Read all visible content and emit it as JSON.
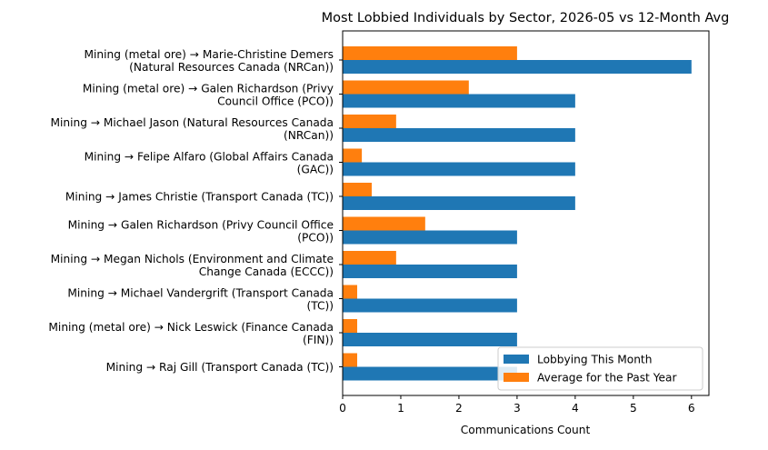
{
  "chart_data": {
    "type": "bar",
    "orientation": "horizontal",
    "title": "Most Lobbied Individuals by Sector, 2026-05 vs 12-Month Avg",
    "xlabel": "Communications Count",
    "ylabel": "",
    "xlim": [
      0,
      6.3
    ],
    "xticks": [
      0,
      1,
      2,
      3,
      4,
      5,
      6
    ],
    "grid": false,
    "legend_position": "lower-right",
    "categories": [
      [
        "Mining (metal ore) → Marie-Christine Demers",
        "(Natural Resources Canada (NRCan))"
      ],
      [
        "Mining (metal ore) → Galen Richardson (Privy",
        "Council Office (PCO))"
      ],
      [
        "Mining → Michael Jason (Natural Resources Canada",
        "(NRCan))"
      ],
      [
        "Mining → Felipe Alfaro (Global Affairs Canada",
        "(GAC))"
      ],
      [
        "Mining → James Christie (Transport Canada (TC))"
      ],
      [
        "Mining → Galen Richardson (Privy Council Office",
        "(PCO))"
      ],
      [
        "Mining → Megan Nichols (Environment and Climate",
        "Change Canada (ECCC))"
      ],
      [
        "Mining → Michael Vandergrift (Transport Canada",
        "(TC))"
      ],
      [
        "Mining (metal ore) → Nick Leswick (Finance Canada",
        "(FIN))"
      ],
      [
        "Mining → Raj Gill (Transport Canada (TC))"
      ]
    ],
    "series": [
      {
        "name": "Lobbying This Month",
        "color": "#1f77b4",
        "values": [
          6,
          4,
          4,
          4,
          4,
          3,
          3,
          3,
          3,
          3
        ]
      },
      {
        "name": "Average for the Past Year",
        "color": "#ff7f0e",
        "values": [
          3.0,
          2.17,
          0.92,
          0.33,
          0.5,
          1.42,
          0.92,
          0.25,
          0.25,
          0.25
        ]
      }
    ]
  }
}
